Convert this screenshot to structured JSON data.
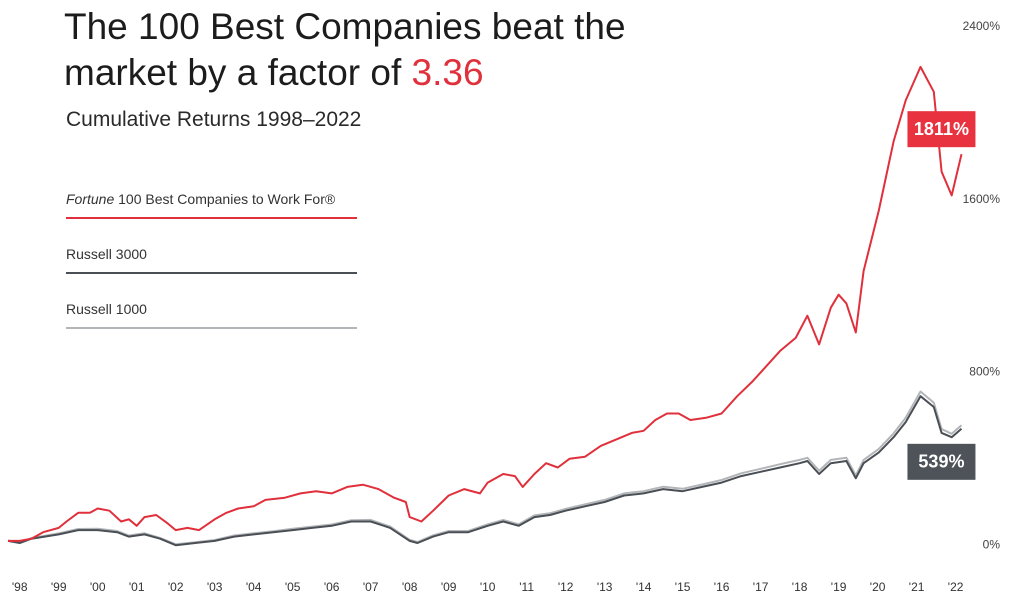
{
  "chart_data": {
    "type": "line",
    "title": "The 100 Best Companies beat the market by a factor of",
    "title_highlight": "3.36",
    "subtitle": "Cumulative Returns 1998–2022",
    "xlim": [
      1997.7,
      2022.6
    ],
    "xticks": [
      {
        "value": 1998,
        "label": "'98"
      },
      {
        "value": 1999,
        "label": "'99"
      },
      {
        "value": 2000,
        "label": "'00"
      },
      {
        "value": 2001,
        "label": "'01"
      },
      {
        "value": 2002,
        "label": "'02"
      },
      {
        "value": 2003,
        "label": "'03"
      },
      {
        "value": 2004,
        "label": "'04"
      },
      {
        "value": 2005,
        "label": "'05"
      },
      {
        "value": 2006,
        "label": "'06"
      },
      {
        "value": 2007,
        "label": "'07"
      },
      {
        "value": 2008,
        "label": "'08"
      },
      {
        "value": 2009,
        "label": "'09"
      },
      {
        "value": 2010,
        "label": "'10"
      },
      {
        "value": 2011,
        "label": "'11"
      },
      {
        "value": 2012,
        "label": "'12"
      },
      {
        "value": 2013,
        "label": "'13"
      },
      {
        "value": 2014,
        "label": "'14"
      },
      {
        "value": 2015,
        "label": "'15"
      },
      {
        "value": 2016,
        "label": "'16"
      },
      {
        "value": 2017,
        "label": "'17"
      },
      {
        "value": 2018,
        "label": "'18"
      },
      {
        "value": 2019,
        "label": "'19"
      },
      {
        "value": 2020,
        "label": "'20"
      },
      {
        "value": 2021,
        "label": "'21"
      },
      {
        "value": 2022,
        "label": "'22"
      }
    ],
    "ylim": [
      -50,
      2400
    ],
    "yticks": [
      {
        "value": 0,
        "label": "0%"
      },
      {
        "value": 800,
        "label": "800%"
      },
      {
        "value": 1600,
        "label": "1600%"
      },
      {
        "value": 2400,
        "label": "2400%"
      }
    ],
    "grid": false,
    "series": [
      {
        "name": "Fortune 100 Best Companies to Work For®",
        "color": "#e0303c",
        "x": [
          1997.7,
          1998.0,
          1998.3,
          1998.6,
          1999.0,
          1999.2,
          1999.5,
          1999.8,
          2000.0,
          2000.3,
          2000.6,
          2000.8,
          2001.0,
          2001.2,
          2001.5,
          2001.8,
          2002.0,
          2002.3,
          2002.6,
          2003.0,
          2003.3,
          2003.6,
          2004.0,
          2004.3,
          2004.8,
          2005.2,
          2005.6,
          2006.0,
          2006.4,
          2006.8,
          2007.2,
          2007.6,
          2007.9,
          2008.0,
          2008.3,
          2008.6,
          2009.0,
          2009.4,
          2009.8,
          2010.0,
          2010.4,
          2010.7,
          2010.9,
          2011.2,
          2011.5,
          2011.8,
          2012.1,
          2012.5,
          2012.9,
          2013.3,
          2013.7,
          2014.0,
          2014.3,
          2014.6,
          2014.9,
          2015.2,
          2015.6,
          2016.0,
          2016.4,
          2016.8,
          2017.1,
          2017.5,
          2017.9,
          2018.2,
          2018.5,
          2018.8,
          2019.0,
          2019.2,
          2019.44,
          2019.64,
          2020.03,
          2020.41,
          2020.72,
          2021.1,
          2021.44,
          2021.64,
          2021.9,
          2022.15
        ],
        "values": [
          20,
          20,
          30,
          60,
          80,
          110,
          150,
          150,
          170,
          160,
          110,
          120,
          90,
          130,
          140,
          100,
          70,
          80,
          70,
          120,
          150,
          170,
          180,
          210,
          220,
          240,
          250,
          240,
          270,
          280,
          260,
          220,
          200,
          130,
          110,
          160,
          230,
          260,
          240,
          290,
          330,
          320,
          270,
          330,
          380,
          360,
          400,
          410,
          460,
          490,
          520,
          530,
          580,
          610,
          610,
          580,
          590,
          610,
          690,
          760,
          820,
          900,
          960,
          1063,
          930,
          1100,
          1160,
          1120,
          985,
          1270,
          1550,
          1870,
          2060,
          2215,
          2100,
          1730,
          1620,
          1811
        ],
        "end_label": {
          "value": 1811,
          "label": "1811%"
        }
      },
      {
        "name": "Russell 3000",
        "color": "#4a4f55",
        "x": [
          1997.7,
          1998.0,
          1998.3,
          1999.0,
          1999.5,
          2000.0,
          2000.5,
          2000.8,
          2001.2,
          2001.6,
          2002.0,
          2002.5,
          2003.0,
          2003.5,
          2004.0,
          2004.5,
          2005.0,
          2005.5,
          2006.0,
          2006.5,
          2007.0,
          2007.5,
          2008.0,
          2008.2,
          2008.6,
          2009.0,
          2009.5,
          2010.0,
          2010.4,
          2010.8,
          2011.2,
          2011.6,
          2012.0,
          2012.5,
          2013.0,
          2013.5,
          2014.0,
          2014.5,
          2015.0,
          2015.5,
          2016.0,
          2016.5,
          2017.0,
          2017.5,
          2018.0,
          2018.2,
          2018.5,
          2018.8,
          2019.2,
          2019.44,
          2019.64,
          2020.03,
          2020.41,
          2020.72,
          2021.1,
          2021.44,
          2021.64,
          2021.9,
          2022.15
        ],
        "values": [
          20,
          10,
          30,
          50,
          70,
          70,
          60,
          40,
          50,
          30,
          0,
          10,
          20,
          40,
          50,
          60,
          70,
          80,
          90,
          110,
          110,
          80,
          20,
          10,
          40,
          60,
          60,
          90,
          110,
          90,
          130,
          140,
          160,
          180,
          200,
          230,
          240,
          260,
          250,
          270,
          290,
          320,
          340,
          360,
          380,
          390,
          330,
          380,
          390,
          310,
          380,
          430,
          500,
          570,
          690,
          640,
          520,
          500,
          539
        ],
        "end_label": {
          "value": 539,
          "label": "539%"
        }
      },
      {
        "name": "Russell 1000",
        "color": "#b3b6b9",
        "x": [
          1997.7,
          1998.0,
          1998.3,
          1999.0,
          1999.5,
          2000.0,
          2000.5,
          2000.8,
          2001.2,
          2001.6,
          2002.0,
          2002.5,
          2003.0,
          2003.5,
          2004.0,
          2004.5,
          2005.0,
          2005.5,
          2006.0,
          2006.5,
          2007.0,
          2007.5,
          2008.0,
          2008.2,
          2008.6,
          2009.0,
          2009.5,
          2010.0,
          2010.4,
          2010.8,
          2011.2,
          2011.6,
          2012.0,
          2012.5,
          2013.0,
          2013.5,
          2014.0,
          2014.5,
          2015.0,
          2015.5,
          2016.0,
          2016.5,
          2017.0,
          2017.5,
          2018.0,
          2018.2,
          2018.5,
          2018.8,
          2019.2,
          2019.44,
          2019.64,
          2020.03,
          2020.41,
          2020.72,
          2021.1,
          2021.44,
          2021.64,
          2021.9,
          2022.15
        ],
        "values": [
          22,
          12,
          33,
          55,
          75,
          76,
          66,
          45,
          55,
          34,
          4,
          14,
          24,
          45,
          55,
          65,
          76,
          86,
          96,
          116,
          117,
          86,
          25,
          15,
          46,
          66,
          66,
          97,
          117,
          97,
          138,
          148,
          168,
          189,
          210,
          240,
          250,
          271,
          261,
          281,
          302,
          333,
          354,
          375,
          395,
          405,
          345,
          395,
          405,
          323,
          395,
          446,
          518,
          590,
          712,
          660,
          538,
          516,
          556
        ]
      }
    ]
  }
}
